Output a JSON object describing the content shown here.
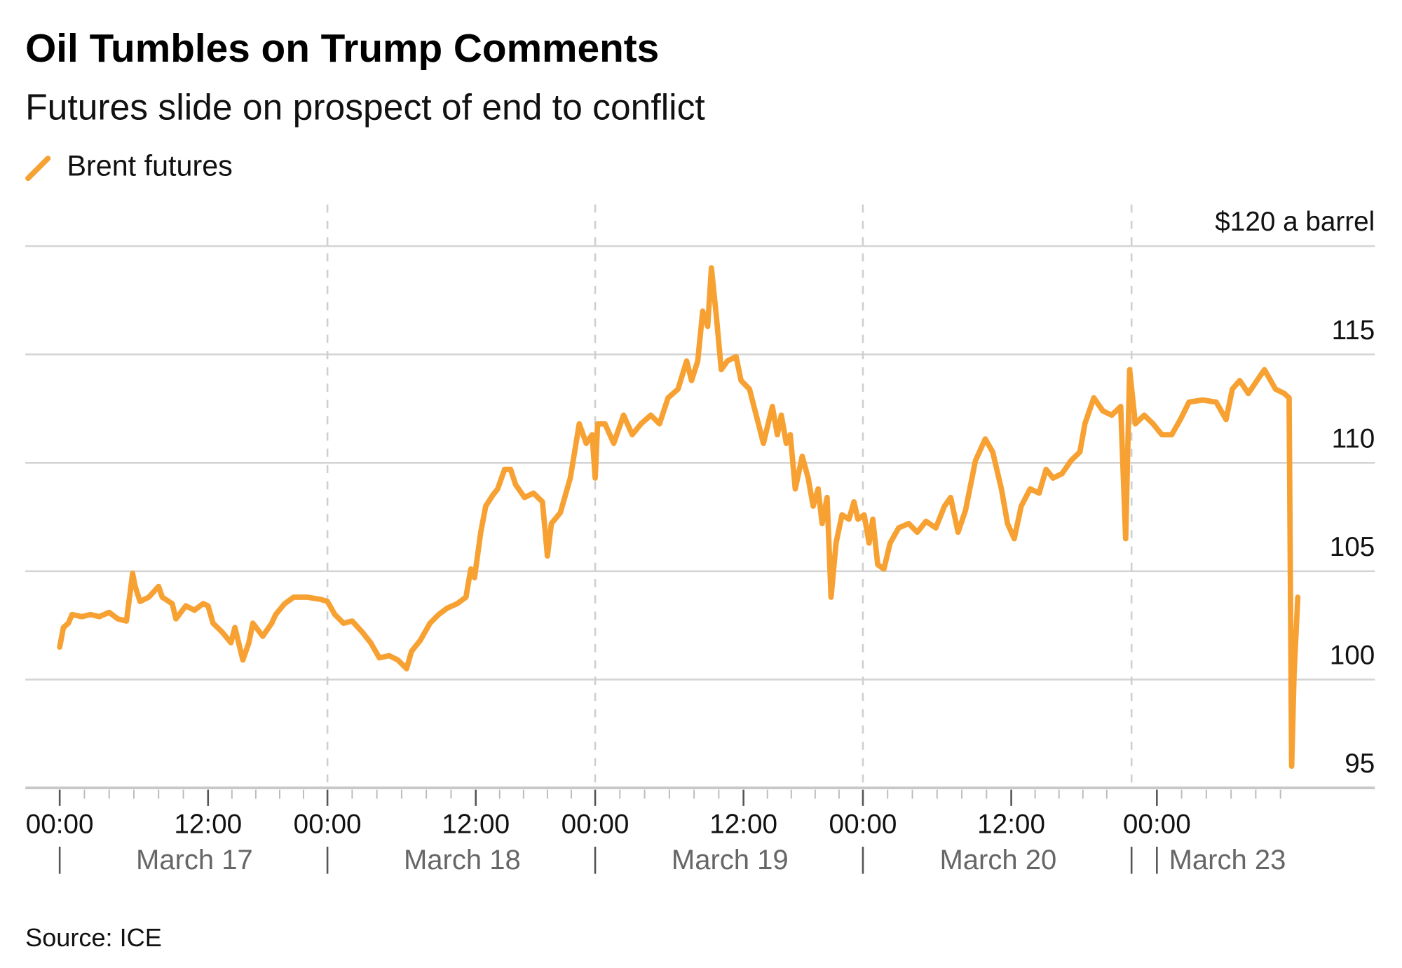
{
  "title": "Oil Tumbles on Trump Comments",
  "subtitle": "Futures slide on prospect of end to conflict",
  "legend": [
    {
      "label": "Brent futures",
      "color": "#F7A133"
    }
  ],
  "source": "Source: ICE",
  "chart_data": {
    "type": "line",
    "title": "Oil Tumbles on Trump Comments",
    "subtitle": "Futures slide on prospect of end to conflict",
    "xlabel": "",
    "ylabel": "$ a barrel",
    "ylim": [
      95,
      120
    ],
    "y_ticks": [
      {
        "value": 120,
        "label": "$120 a barrel"
      },
      {
        "value": 115,
        "label": "115"
      },
      {
        "value": 110,
        "label": "110"
      },
      {
        "value": 105,
        "label": "105"
      },
      {
        "value": 100,
        "label": "100"
      },
      {
        "value": 95,
        "label": "95"
      }
    ],
    "x_units": "hours since March 17 00:00 (trading-time axis; weekend compressed)",
    "x_ticks": [
      {
        "hour": 0,
        "label": "00:00"
      },
      {
        "hour": 12,
        "label": "12:00"
      },
      {
        "hour": 24,
        "label": "00:00"
      },
      {
        "hour": 36,
        "label": "12:00"
      },
      {
        "hour": 48,
        "label": "00:00"
      },
      {
        "hour": 60,
        "label": "12:00"
      },
      {
        "hour": 72,
        "label": "00:00"
      },
      {
        "hour": 84,
        "label": "12:00"
      },
      {
        "hour": 144,
        "label": "00:00"
      }
    ],
    "day_labels": [
      {
        "start": 0,
        "end": 24,
        "label": "March 17"
      },
      {
        "start": 24,
        "end": 48,
        "label": "March 18"
      },
      {
        "start": 48,
        "end": 72,
        "label": "March 19"
      },
      {
        "start": 72,
        "end": 96,
        "label": "March 20"
      },
      {
        "start": 144,
        "end": 156,
        "label": "March 23"
      }
    ],
    "day_separators": [
      0,
      24,
      48,
      72,
      96,
      144
    ],
    "grid": true,
    "legend_position": "top-left",
    "series": [
      {
        "name": "Brent futures",
        "color": "#F7A133",
        "points": [
          [
            0,
            101.5
          ],
          [
            0.3,
            102.4
          ],
          [
            0.7,
            102.6
          ],
          [
            1.0,
            103.0
          ],
          [
            1.8,
            102.9
          ],
          [
            2.5,
            103.0
          ],
          [
            3.2,
            102.9
          ],
          [
            4.0,
            103.1
          ],
          [
            4.7,
            102.8
          ],
          [
            5.4,
            102.7
          ],
          [
            5.9,
            104.9
          ],
          [
            6.1,
            104.3
          ],
          [
            6.5,
            103.6
          ],
          [
            7.2,
            103.8
          ],
          [
            8.0,
            104.3
          ],
          [
            8.3,
            103.8
          ],
          [
            9.1,
            103.5
          ],
          [
            9.4,
            102.8
          ],
          [
            10.2,
            103.4
          ],
          [
            10.9,
            103.2
          ],
          [
            11.6,
            103.5
          ],
          [
            12.0,
            103.4
          ],
          [
            12.5,
            102.6
          ],
          [
            13.4,
            102.2
          ],
          [
            14.3,
            101.7
          ],
          [
            14.7,
            102.4
          ],
          [
            15.5,
            100.9
          ],
          [
            16.1,
            101.7
          ],
          [
            16.5,
            102.6
          ],
          [
            17.5,
            102.0
          ],
          [
            18.4,
            102.6
          ],
          [
            18.8,
            103.0
          ],
          [
            19.7,
            103.5
          ],
          [
            20.6,
            103.8
          ],
          [
            22.0,
            103.8
          ],
          [
            23.3,
            103.7
          ],
          [
            24.0,
            103.6
          ],
          [
            24.6,
            103.0
          ],
          [
            25.3,
            102.6
          ],
          [
            26.0,
            102.7
          ],
          [
            26.8,
            102.2
          ],
          [
            27.5,
            101.7
          ],
          [
            28.2,
            101.0
          ],
          [
            29.0,
            101.1
          ],
          [
            29.7,
            100.9
          ],
          [
            30.4,
            100.5
          ],
          [
            30.8,
            101.3
          ],
          [
            31.5,
            101.8
          ],
          [
            32.3,
            102.6
          ],
          [
            33.0,
            103.0
          ],
          [
            33.7,
            103.3
          ],
          [
            34.5,
            103.5
          ],
          [
            35.2,
            103.8
          ],
          [
            35.6,
            105.1
          ],
          [
            35.9,
            104.7
          ],
          [
            36.5,
            106.8
          ],
          [
            37.0,
            108.0
          ],
          [
            37.7,
            108.5
          ],
          [
            38.2,
            108.8
          ],
          [
            38.9,
            109.7
          ],
          [
            39.5,
            109.7
          ],
          [
            40.0,
            109.0
          ],
          [
            40.9,
            108.4
          ],
          [
            41.8,
            108.6
          ],
          [
            42.7,
            108.2
          ],
          [
            43.2,
            105.7
          ],
          [
            43.6,
            107.2
          ],
          [
            44.5,
            107.7
          ],
          [
            45.5,
            109.3
          ],
          [
            46.4,
            111.8
          ],
          [
            47.1,
            110.9
          ],
          [
            47.7,
            111.3
          ],
          [
            48.0,
            109.3
          ],
          [
            48.2,
            111.8
          ],
          [
            48.8,
            111.8
          ],
          [
            49.5,
            110.9
          ],
          [
            50.3,
            112.2
          ],
          [
            51.0,
            111.3
          ],
          [
            51.7,
            111.8
          ],
          [
            52.5,
            112.2
          ],
          [
            53.2,
            111.8
          ],
          [
            53.9,
            113.0
          ],
          [
            54.7,
            113.4
          ],
          [
            55.4,
            114.7
          ],
          [
            55.8,
            113.8
          ],
          [
            56.3,
            114.7
          ],
          [
            56.7,
            117.0
          ],
          [
            57.1,
            116.3
          ],
          [
            57.4,
            119.0
          ],
          [
            57.8,
            116.8
          ],
          [
            58.2,
            114.3
          ],
          [
            58.7,
            114.7
          ],
          [
            59.4,
            114.9
          ],
          [
            59.8,
            113.8
          ],
          [
            60.6,
            113.4
          ],
          [
            61.5,
            111.8
          ],
          [
            62.0,
            110.9
          ],
          [
            62.9,
            112.6
          ],
          [
            63.4,
            111.3
          ],
          [
            63.8,
            112.2
          ],
          [
            64.3,
            110.9
          ],
          [
            64.7,
            111.3
          ],
          [
            65.2,
            108.8
          ],
          [
            65.9,
            110.3
          ],
          [
            66.5,
            109.3
          ],
          [
            67.0,
            108.0
          ],
          [
            67.5,
            108.8
          ],
          [
            67.9,
            107.2
          ],
          [
            68.4,
            108.4
          ],
          [
            68.8,
            103.8
          ],
          [
            69.3,
            106.3
          ],
          [
            69.9,
            107.6
          ],
          [
            70.6,
            107.4
          ],
          [
            71.1,
            108.2
          ],
          [
            71.5,
            107.4
          ],
          [
            72.1,
            107.6
          ],
          [
            72.5,
            106.3
          ],
          [
            72.8,
            107.4
          ],
          [
            73.2,
            105.3
          ],
          [
            73.7,
            105.1
          ],
          [
            74.2,
            106.3
          ],
          [
            74.9,
            107.0
          ],
          [
            75.7,
            107.2
          ],
          [
            76.4,
            106.8
          ],
          [
            77.1,
            107.3
          ],
          [
            77.9,
            107.0
          ],
          [
            78.6,
            108.0
          ],
          [
            79.1,
            108.4
          ],
          [
            79.7,
            106.8
          ],
          [
            80.3,
            107.8
          ],
          [
            81.1,
            110.1
          ],
          [
            81.9,
            111.1
          ],
          [
            82.5,
            110.5
          ],
          [
            83.2,
            108.8
          ],
          [
            83.7,
            107.2
          ],
          [
            84.3,
            106.5
          ],
          [
            85.0,
            108.0
          ],
          [
            85.9,
            108.8
          ],
          [
            86.8,
            108.6
          ],
          [
            87.5,
            109.7
          ],
          [
            88.2,
            109.3
          ],
          [
            89.1,
            109.5
          ],
          [
            90.0,
            110.1
          ],
          [
            90.9,
            110.5
          ],
          [
            91.4,
            111.8
          ],
          [
            92.3,
            113.0
          ],
          [
            93.2,
            112.4
          ],
          [
            94.1,
            112.2
          ],
          [
            95.0,
            112.6
          ],
          [
            95.5,
            106.5
          ],
          [
            95.9,
            114.3
          ],
          [
            142.3,
            111.8
          ],
          [
            143.0,
            112.2
          ],
          [
            143.7,
            111.8
          ],
          [
            144.4,
            111.3
          ],
          [
            145.2,
            111.3
          ],
          [
            145.9,
            112.0
          ],
          [
            146.6,
            112.8
          ],
          [
            147.7,
            112.9
          ],
          [
            148.8,
            112.8
          ],
          [
            149.6,
            112.0
          ],
          [
            150.1,
            113.4
          ],
          [
            150.7,
            113.8
          ],
          [
            151.4,
            113.2
          ],
          [
            152.1,
            113.8
          ],
          [
            152.7,
            114.3
          ],
          [
            153.6,
            113.4
          ],
          [
            154.3,
            113.2
          ],
          [
            154.7,
            113.0
          ],
          [
            154.9,
            96.0
          ],
          [
            155.1,
            100.3
          ],
          [
            155.4,
            103.8
          ]
        ]
      }
    ]
  }
}
